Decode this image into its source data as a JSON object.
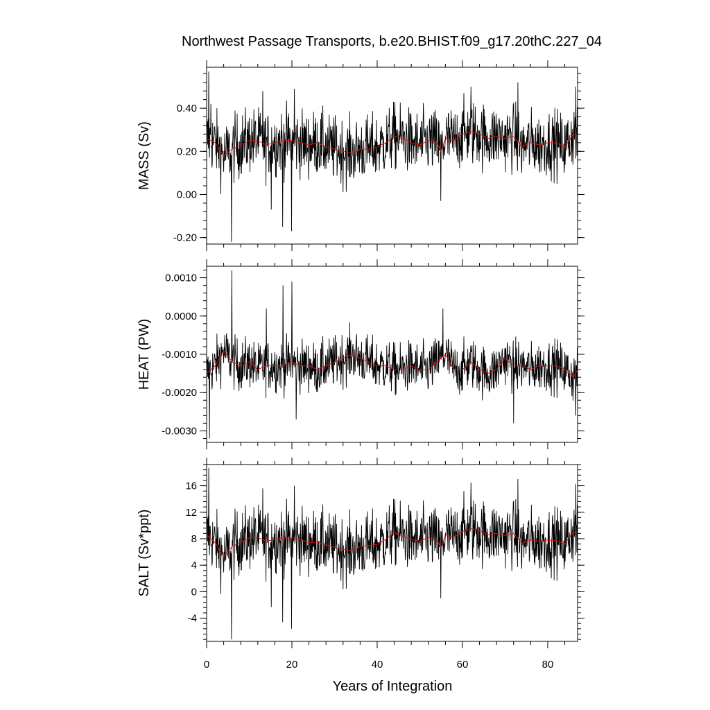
{
  "chart_data": {
    "type": "line",
    "title": "Northwest Passage Transports, b.e20.BHIST.f09_g17.20thC.227_04",
    "xlabel": "Years of Integration",
    "xlim": [
      0,
      87
    ],
    "xticks": [
      0,
      20,
      40,
      60,
      80
    ],
    "xtick_labels": [
      "0",
      "20",
      "40",
      "60",
      "80"
    ],
    "legend": "none",
    "grid": false,
    "smooth_color": "#e01010",
    "raw_color": "#000000",
    "panels": [
      {
        "ylabel": "MASS (Sv)",
        "ylim": [
          -0.23,
          0.59
        ],
        "yticks": [
          -0.2,
          0.0,
          0.2,
          0.4
        ],
        "ytick_labels": [
          "-0.20",
          "0.00",
          "0.20",
          "0.40"
        ],
        "mean": 0.23,
        "spread": 0.075,
        "smooth": [
          [
            0,
            0.26
          ],
          [
            2,
            0.24
          ],
          [
            4,
            0.18
          ],
          [
            6,
            0.21
          ],
          [
            8,
            0.23
          ],
          [
            10,
            0.25
          ],
          [
            12,
            0.25
          ],
          [
            14,
            0.23
          ],
          [
            16,
            0.24
          ],
          [
            18,
            0.25
          ],
          [
            20,
            0.25
          ],
          [
            22,
            0.24
          ],
          [
            24,
            0.23
          ],
          [
            26,
            0.24
          ],
          [
            28,
            0.22
          ],
          [
            30,
            0.21
          ],
          [
            32,
            0.2
          ],
          [
            34,
            0.19
          ],
          [
            36,
            0.21
          ],
          [
            38,
            0.21
          ],
          [
            40,
            0.22
          ],
          [
            42,
            0.24
          ],
          [
            44,
            0.27
          ],
          [
            46,
            0.26
          ],
          [
            48,
            0.24
          ],
          [
            50,
            0.23
          ],
          [
            52,
            0.25
          ],
          [
            54,
            0.24
          ],
          [
            55,
            0.2
          ],
          [
            56,
            0.26
          ],
          [
            58,
            0.25
          ],
          [
            60,
            0.28
          ],
          [
            62,
            0.29
          ],
          [
            64,
            0.28
          ],
          [
            66,
            0.26
          ],
          [
            68,
            0.27
          ],
          [
            70,
            0.26
          ],
          [
            72,
            0.27
          ],
          [
            74,
            0.22
          ],
          [
            76,
            0.24
          ],
          [
            78,
            0.23
          ],
          [
            80,
            0.24
          ],
          [
            82,
            0.24
          ],
          [
            84,
            0.22
          ],
          [
            86,
            0.28
          ],
          [
            87,
            0.27
          ]
        ],
        "spikes": [
          [
            0.5,
            0.57
          ],
          [
            1.0,
            0.42
          ],
          [
            5.8,
            -0.22
          ],
          [
            15.2,
            -0.07
          ],
          [
            17.8,
            -0.15
          ],
          [
            19.9,
            -0.17
          ],
          [
            20.6,
            0.49
          ],
          [
            13.2,
            0.48
          ],
          [
            62.0,
            0.5
          ],
          [
            73.0,
            0.52
          ],
          [
            54.9,
            -0.03
          ],
          [
            86.6,
            0.5
          ]
        ]
      },
      {
        "ylabel": "HEAT (PW)",
        "ylim": [
          -0.0033,
          0.0013
        ],
        "yticks": [
          -0.003,
          -0.002,
          -0.001,
          0.0,
          0.001
        ],
        "ytick_labels": [
          "-0.0030",
          "-0.0020",
          "-0.0010",
          "0.0000",
          "0.0010"
        ],
        "mean": -0.00135,
        "spread": 0.00033,
        "smooth": [
          [
            0,
            -0.0015
          ],
          [
            2,
            -0.0013
          ],
          [
            4,
            -0.0009
          ],
          [
            6,
            -0.0012
          ],
          [
            8,
            -0.0013
          ],
          [
            10,
            -0.0012
          ],
          [
            12,
            -0.0014
          ],
          [
            14,
            -0.0013
          ],
          [
            16,
            -0.0013
          ],
          [
            18,
            -0.0013
          ],
          [
            20,
            -0.0012
          ],
          [
            22,
            -0.0013
          ],
          [
            24,
            -0.0013
          ],
          [
            26,
            -0.0014
          ],
          [
            28,
            -0.0013
          ],
          [
            30,
            -0.0012
          ],
          [
            32,
            -0.0011
          ],
          [
            34,
            -0.001
          ],
          [
            36,
            -0.0011
          ],
          [
            38,
            -0.0012
          ],
          [
            40,
            -0.0013
          ],
          [
            42,
            -0.0013
          ],
          [
            44,
            -0.0014
          ],
          [
            46,
            -0.0014
          ],
          [
            48,
            -0.0013
          ],
          [
            50,
            -0.0014
          ],
          [
            52,
            -0.0014
          ],
          [
            54,
            -0.0012
          ],
          [
            56,
            -0.001
          ],
          [
            58,
            -0.0014
          ],
          [
            60,
            -0.0014
          ],
          [
            62,
            -0.0012
          ],
          [
            64,
            -0.0014
          ],
          [
            66,
            -0.0015
          ],
          [
            68,
            -0.0014
          ],
          [
            70,
            -0.0011
          ],
          [
            72,
            -0.0013
          ],
          [
            74,
            -0.0013
          ],
          [
            76,
            -0.0014
          ],
          [
            78,
            -0.0013
          ],
          [
            80,
            -0.0013
          ],
          [
            82,
            -0.0013
          ],
          [
            84,
            -0.0014
          ],
          [
            86,
            -0.0016
          ],
          [
            87,
            -0.0014
          ]
        ],
        "spikes": [
          [
            0.7,
            -0.0032
          ],
          [
            5.9,
            0.0012
          ],
          [
            14.0,
            0.0002
          ],
          [
            17.9,
            0.0008
          ],
          [
            20.0,
            0.0009
          ],
          [
            21.0,
            -0.0027
          ],
          [
            55.4,
            0.0002
          ],
          [
            72.0,
            -0.0028
          ],
          [
            86.6,
            -0.0026
          ]
        ]
      },
      {
        "ylabel": "SALT (Sv*ppt)",
        "ylim": [
          -7.5,
          19.2
        ],
        "yticks": [
          -4,
          0,
          4,
          8,
          12,
          16
        ],
        "ytick_labels": [
          "-4",
          "0",
          "4",
          "8",
          "12",
          "16"
        ],
        "mean": 7.6,
        "spread": 2.4,
        "smooth": [
          [
            0,
            8.6
          ],
          [
            2,
            7.4
          ],
          [
            4,
            5.3
          ],
          [
            6,
            6.8
          ],
          [
            8,
            7.5
          ],
          [
            10,
            8.1
          ],
          [
            12,
            8.2
          ],
          [
            14,
            7.6
          ],
          [
            16,
            7.9
          ],
          [
            18,
            8.1
          ],
          [
            20,
            8.1
          ],
          [
            22,
            7.9
          ],
          [
            24,
            7.4
          ],
          [
            26,
            7.5
          ],
          [
            28,
            7.1
          ],
          [
            30,
            6.7
          ],
          [
            32,
            6.4
          ],
          [
            34,
            6.2
          ],
          [
            36,
            6.8
          ],
          [
            38,
            7.0
          ],
          [
            40,
            7.1
          ],
          [
            42,
            7.9
          ],
          [
            44,
            8.9
          ],
          [
            46,
            8.4
          ],
          [
            48,
            7.9
          ],
          [
            50,
            7.6
          ],
          [
            52,
            8.2
          ],
          [
            54,
            7.8
          ],
          [
            55,
            6.6
          ],
          [
            56,
            8.6
          ],
          [
            58,
            8.2
          ],
          [
            60,
            9.1
          ],
          [
            62,
            9.5
          ],
          [
            64,
            9.2
          ],
          [
            66,
            8.6
          ],
          [
            68,
            8.8
          ],
          [
            70,
            8.5
          ],
          [
            72,
            8.8
          ],
          [
            74,
            7.3
          ],
          [
            76,
            7.8
          ],
          [
            78,
            7.6
          ],
          [
            80,
            7.8
          ],
          [
            82,
            7.7
          ],
          [
            84,
            7.2
          ],
          [
            86,
            9.1
          ],
          [
            87,
            8.8
          ]
        ],
        "spikes": [
          [
            0.5,
            18.7
          ],
          [
            5.8,
            -7.2
          ],
          [
            15.2,
            -2.3
          ],
          [
            17.8,
            -4.6
          ],
          [
            19.9,
            -5.6
          ],
          [
            20.6,
            16.0
          ],
          [
            13.2,
            15.6
          ],
          [
            62.0,
            16.5
          ],
          [
            73.0,
            17.0
          ],
          [
            54.9,
            -1.0
          ],
          [
            86.6,
            16.3
          ]
        ]
      }
    ]
  }
}
